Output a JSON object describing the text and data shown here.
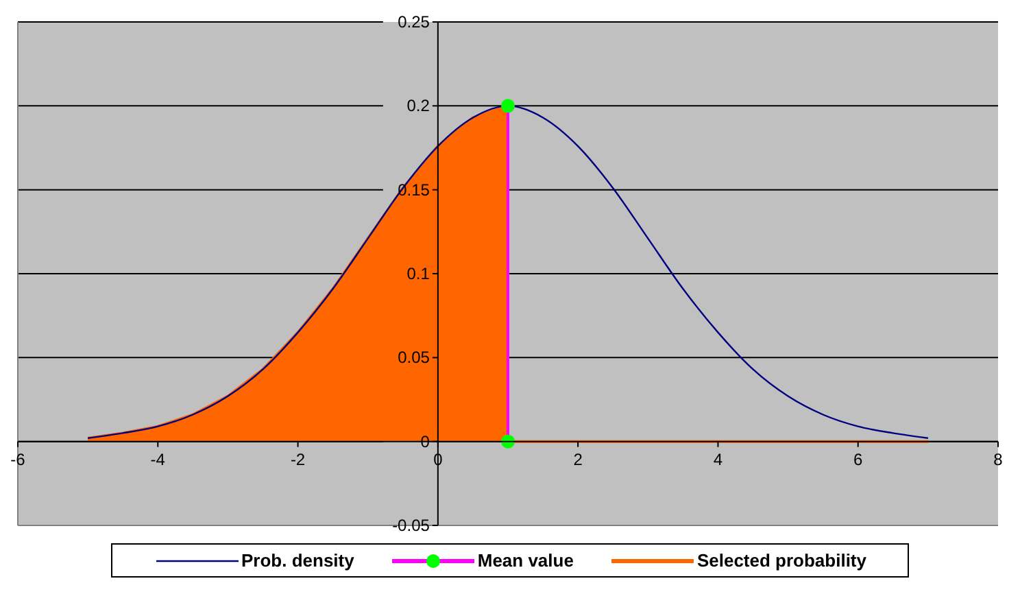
{
  "chart_data": {
    "type": "line",
    "xlim": [
      -6,
      8
    ],
    "xticks": [
      -6,
      -4,
      -2,
      0,
      2,
      4,
      6,
      8
    ],
    "ylim": [
      -0.05,
      0.25
    ],
    "yticks": [
      -0.05,
      0,
      0.05,
      0.1,
      0.15,
      0.2,
      0.25
    ],
    "grid": "y",
    "legend": "bottom",
    "marker": "none",
    "series": [
      {
        "name": "Prob. density",
        "color": "#000080",
        "x": [
          -5,
          -4.5,
          -4,
          -3.5,
          -3,
          -2.5,
          -2,
          -1.5,
          -1,
          -0.5,
          0,
          0.5,
          1,
          1.5,
          2,
          2.5,
          3,
          3.5,
          4,
          4.5,
          5,
          5.5,
          6,
          6.5,
          7
        ],
        "values": [
          0.002,
          0.005,
          0.009,
          0.016,
          0.027,
          0.043,
          0.065,
          0.091,
          0.121,
          0.151,
          0.176,
          0.193,
          0.2,
          0.193,
          0.176,
          0.151,
          0.121,
          0.091,
          0.065,
          0.043,
          0.027,
          0.016,
          0.009,
          0.005,
          0.002
        ]
      },
      {
        "name": "Mean value",
        "color": "#ff00ff",
        "colors": [
          "#00ff00",
          "#00ff00"
        ],
        "marker": "circle",
        "x": [
          1,
          1
        ],
        "values": [
          0,
          0.2
        ]
      },
      {
        "name": "Selected probability",
        "type": "area",
        "color": "#ff6600",
        "x": [
          -5,
          -4.5,
          -4,
          -3.5,
          -3,
          -2.5,
          -2,
          -1.5,
          -1,
          -0.5,
          0,
          0.5,
          1,
          1,
          1.5,
          2,
          2.5,
          3,
          3.5,
          4,
          4.5,
          5,
          5.5,
          6,
          6.5,
          7
        ],
        "values": [
          0.002,
          0.005,
          0.009,
          0.016,
          0.027,
          0.043,
          0.065,
          0.091,
          0.121,
          0.151,
          0.176,
          0.193,
          0.2,
          0,
          0,
          0,
          0,
          0,
          0,
          0,
          0,
          0,
          0,
          0,
          0,
          0
        ]
      }
    ]
  }
}
